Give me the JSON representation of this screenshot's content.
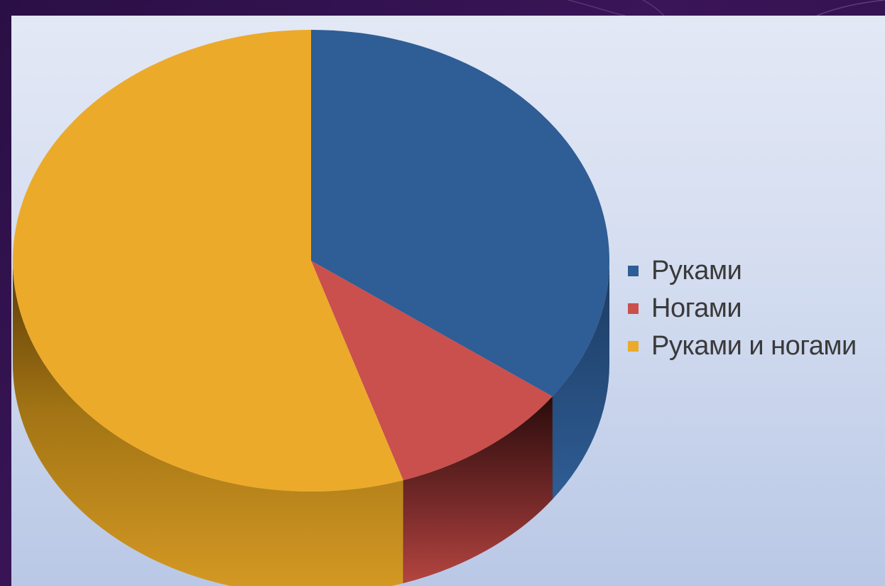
{
  "chart_data": {
    "type": "pie",
    "title": "",
    "categories": [
      "Руками",
      "Ногами",
      "Руками и ногами"
    ],
    "values": [
      35,
      10,
      55
    ],
    "colors": [
      "#2f5d95",
      "#c9504c",
      "#ecaa2b"
    ],
    "legend_position": "right",
    "style": "3d"
  },
  "legend": {
    "items": [
      {
        "label": "Руками",
        "color": "#2f5d95"
      },
      {
        "label": "Ногами",
        "color": "#c9504c"
      },
      {
        "label": "Руками и ногами",
        "color": "#ecaa2b"
      }
    ]
  }
}
